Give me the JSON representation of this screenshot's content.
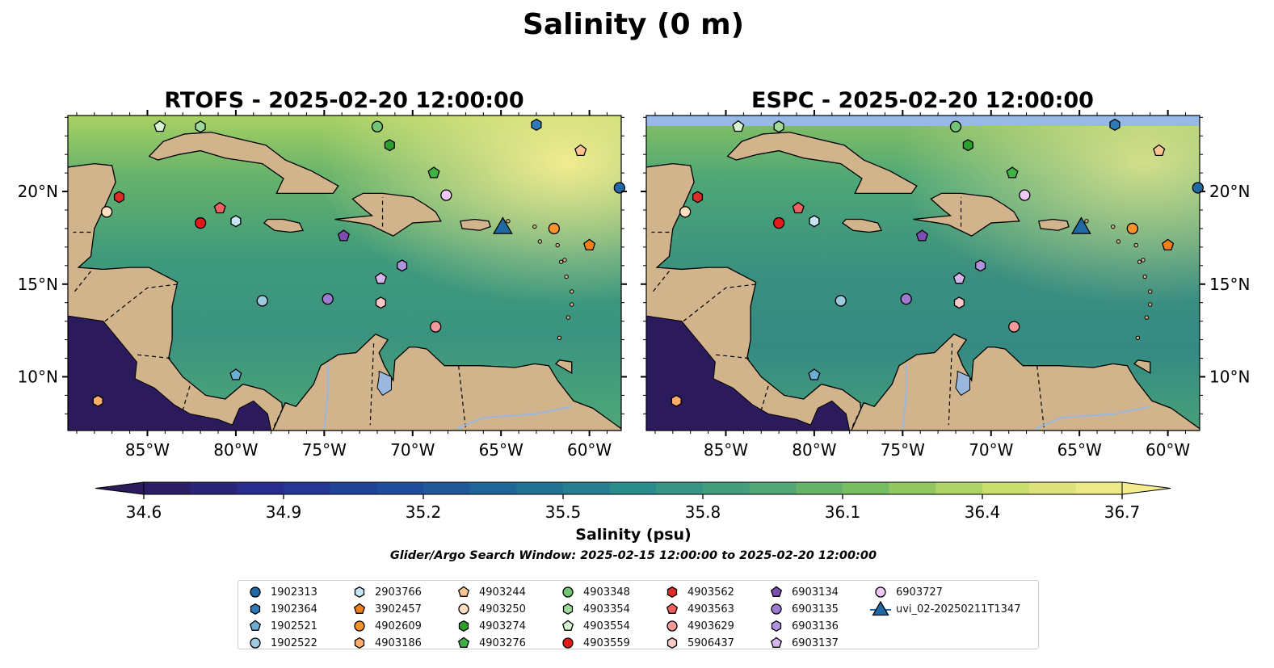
{
  "figure_title": "Salinity (0 m)",
  "panels": [
    {
      "title": "RTOFS - 2025-02-20 12:00:00"
    },
    {
      "title": "ESPC - 2025-02-20 12:00:00"
    }
  ],
  "colorbar": {
    "label": "Salinity (psu)",
    "ticks": [
      "34.6",
      "34.9",
      "35.2",
      "35.5",
      "35.8",
      "36.1",
      "36.4",
      "36.7"
    ],
    "min": 34.6,
    "max": 36.7,
    "colors": [
      "#2b1b5c",
      "#2a2d8f",
      "#1f4a9b",
      "#1f6a96",
      "#2b8c8c",
      "#4aa37a",
      "#7ec05e",
      "#c7dd6a",
      "#f5ec8f"
    ]
  },
  "search_window": "Glider/Argo Search Window: 2025-02-15 12:00:00 to 2025-02-20 12:00:00",
  "colors": {
    "land": "#d2b48c",
    "ocean_low": "#2b1b5c",
    "lake": "#9ab7de",
    "no_data_band": "#98b9e6"
  },
  "chart_data": {
    "type": "scatter",
    "x_axis": {
      "range": [
        -89.5,
        -58.2
      ],
      "ticks": [
        "85°W",
        "80°W",
        "75°W",
        "70°W",
        "65°W",
        "60°W"
      ],
      "tick_values": [
        -85,
        -80,
        -75,
        -70,
        -65,
        -60
      ]
    },
    "y_axis": {
      "range": [
        7.1,
        24.1
      ],
      "ticks": [
        "10°N",
        "15°N",
        "20°N"
      ],
      "tick_values": [
        10,
        15,
        20
      ]
    },
    "series": [
      {
        "name": "1902313",
        "marker": "circle",
        "color": "#1f6aa5",
        "lon": -58.3,
        "lat": 20.2
      },
      {
        "name": "1902364",
        "marker": "hexagon",
        "color": "#2e7ab8",
        "lon": -63.0,
        "lat": 23.6
      },
      {
        "name": "1902521",
        "marker": "pentagon",
        "color": "#6baed6",
        "lon": -80.0,
        "lat": 10.1
      },
      {
        "name": "1902522",
        "marker": "circle",
        "color": "#9ecae1",
        "lon": -78.5,
        "lat": 14.1
      },
      {
        "name": "2903766",
        "marker": "hexagon",
        "color": "#c6e6f7",
        "lon": -80.0,
        "lat": 18.4
      },
      {
        "name": "3902457",
        "marker": "pentagon",
        "color": "#f07f1a",
        "lon": -60.0,
        "lat": 17.1
      },
      {
        "name": "4902609",
        "marker": "circle",
        "color": "#f8922e",
        "lon": -62.0,
        "lat": 18.0
      },
      {
        "name": "4903186",
        "marker": "hexagon",
        "color": "#fdae6b",
        "lon": -87.8,
        "lat": 8.7
      },
      {
        "name": "4903244",
        "marker": "pentagon",
        "color": "#fdc493",
        "lon": -60.5,
        "lat": 22.2
      },
      {
        "name": "4903250",
        "marker": "circle",
        "color": "#fee0c0",
        "lon": -87.3,
        "lat": 18.9
      },
      {
        "name": "4903274",
        "marker": "hexagon",
        "color": "#2ca02c",
        "lon": -71.3,
        "lat": 22.5
      },
      {
        "name": "4903276",
        "marker": "pentagon",
        "color": "#41b045",
        "lon": -68.8,
        "lat": 21.0
      },
      {
        "name": "4903348",
        "marker": "circle",
        "color": "#74c476",
        "lon": -72.0,
        "lat": 23.5
      },
      {
        "name": "4903354",
        "marker": "hexagon",
        "color": "#a1d99b",
        "lon": -82.0,
        "lat": 23.5
      },
      {
        "name": "4903554",
        "marker": "pentagon",
        "color": "#d8f5d2",
        "lon": -84.3,
        "lat": 23.5
      },
      {
        "name": "4903559",
        "marker": "circle",
        "color": "#e31a1c",
        "lon": -82.0,
        "lat": 18.3
      },
      {
        "name": "4903562",
        "marker": "hexagon",
        "color": "#de2d26",
        "lon": -86.6,
        "lat": 19.7
      },
      {
        "name": "4903563",
        "marker": "pentagon",
        "color": "#f06262",
        "lon": -80.9,
        "lat": 19.1
      },
      {
        "name": "4903629",
        "marker": "circle",
        "color": "#f49a9a",
        "lon": -68.7,
        "lat": 12.7
      },
      {
        "name": "5906437",
        "marker": "hexagon",
        "color": "#fcc7c7",
        "lon": -71.8,
        "lat": 14.0
      },
      {
        "name": "6903134",
        "marker": "pentagon",
        "color": "#7e4db0",
        "lon": -73.9,
        "lat": 17.6
      },
      {
        "name": "6903135",
        "marker": "circle",
        "color": "#9e7bd0",
        "lon": -74.8,
        "lat": 14.2
      },
      {
        "name": "6903136",
        "marker": "hexagon",
        "color": "#b194e0",
        "lon": -70.6,
        "lat": 16.0
      },
      {
        "name": "6903137",
        "marker": "pentagon",
        "color": "#d4b5f0",
        "lon": -71.8,
        "lat": 15.3
      },
      {
        "name": "6903727",
        "marker": "circle",
        "color": "#efc8f8",
        "lon": -68.1,
        "lat": 19.8
      },
      {
        "name": "uvi_02-20250211T1347",
        "marker": "triangle",
        "color": "#1f6aa5",
        "lon": -64.9,
        "lat": 18.1
      }
    ]
  }
}
